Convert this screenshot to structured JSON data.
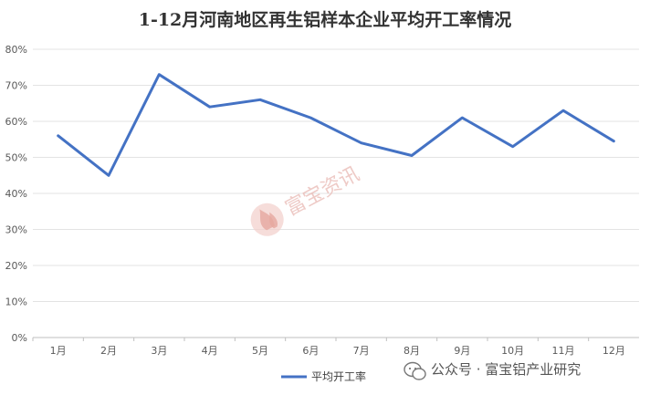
{
  "chart_data": {
    "type": "line",
    "title": "1-12月河南地区再生铝样本企业平均开工率情况",
    "categories": [
      "1月",
      "2月",
      "3月",
      "4月",
      "5月",
      "6月",
      "7月",
      "8月",
      "9月",
      "10月",
      "11月",
      "12月"
    ],
    "series": [
      {
        "name": "平均开工率",
        "values": [
          56,
          45,
          73,
          64,
          66,
          61,
          54,
          50.5,
          61,
          53,
          63,
          54.5
        ]
      }
    ],
    "ylim": [
      0,
      80
    ],
    "yticks": [
      "0%",
      "10%",
      "20%",
      "30%",
      "40%",
      "50%",
      "60%",
      "70%",
      "80%"
    ],
    "grid": true,
    "legend": "bottom",
    "series_color": "#4472c4"
  },
  "watermark": {
    "text": "富宝资讯",
    "icon": "fubao-logo-icon"
  },
  "footer": {
    "text": "公众号 · 富宝铝产业研究",
    "icon": "wechat-icon"
  }
}
